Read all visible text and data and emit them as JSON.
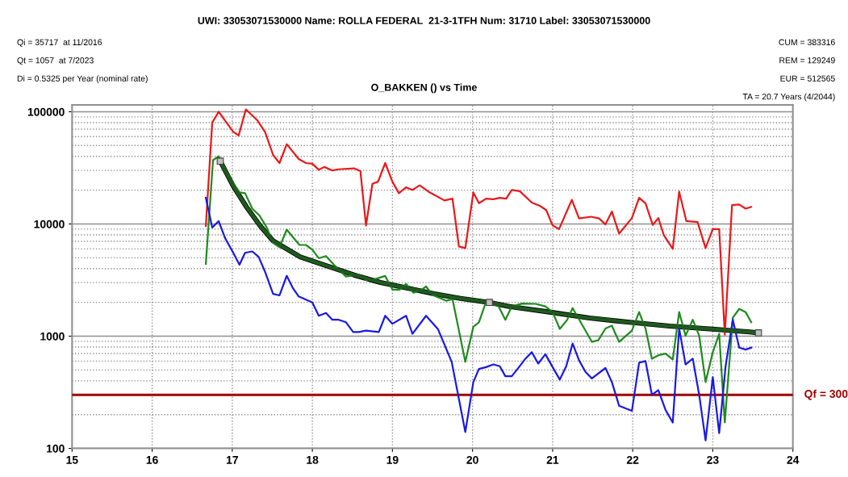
{
  "chart_data": {
    "type": "line",
    "title": "UWI: 33053071530000 Name: ROLLA FEDERAL  21-3-1TFH Num: 31710 Label: 33053071530000",
    "subtitle": "O_BAKKEN () vs Time",
    "annotations": [
      "Qi = 35717  at 11/2016",
      "Qt = 1057  at 7/2023",
      "Di = 0.5325 per Year (nominal rate)",
      "CUM = 383316",
      "REM = 129249",
      "EUR = 512565",
      "TA = 20.7 Years (4/2044)"
    ],
    "log": "y",
    "grid": true,
    "marker": "none",
    "line_style": "solid",
    "xlim": [
      15,
      24
    ],
    "xticks": [
      15,
      16,
      17,
      18,
      19,
      20,
      21,
      22,
      23,
      24
    ],
    "ylim": [
      100,
      115000
    ],
    "yticks": [
      100,
      1000,
      10000,
      100000
    ],
    "ref_lines": [
      {
        "axis": "y",
        "value": 300,
        "label": "Qf = 300",
        "color": "#a00000"
      }
    ],
    "series": [
      {
        "color": "#e8191b",
        "x": [
          16.67,
          16.75,
          16.83,
          17.01,
          17.08,
          17.17,
          17.31,
          17.41,
          17.51,
          17.59,
          17.68,
          17.83,
          17.92,
          18.0,
          18.08,
          18.15,
          18.25,
          18.33,
          18.52,
          18.6,
          18.67,
          18.75,
          18.82,
          18.91,
          19.0,
          19.08,
          19.17,
          19.25,
          19.34,
          19.45,
          19.65,
          19.75,
          19.83,
          19.91,
          20.01,
          20.08,
          20.17,
          20.26,
          20.34,
          20.42,
          20.49,
          20.59,
          20.74,
          20.84,
          20.92,
          21.0,
          21.08,
          21.24,
          21.33,
          21.48,
          21.58,
          21.66,
          21.74,
          21.83,
          21.99,
          22.08,
          22.16,
          22.25,
          22.32,
          22.39,
          22.5,
          22.58,
          22.67,
          22.81,
          22.91,
          23.0,
          23.08,
          23.15,
          23.24,
          23.33,
          23.41,
          23.48
        ],
        "values": [
          9600,
          80000,
          100000,
          66500,
          61600,
          105000,
          84400,
          66000,
          41200,
          34900,
          51400,
          37900,
          34900,
          34400,
          30400,
          32200,
          30000,
          30700,
          31300,
          29600,
          9700,
          22800,
          23800,
          34900,
          23800,
          18800,
          21200,
          20100,
          22100,
          19400,
          16200,
          16800,
          6300,
          6100,
          19100,
          15300,
          16800,
          16600,
          17100,
          16800,
          20100,
          19600,
          15500,
          14500,
          13300,
          9700,
          9000,
          16400,
          11200,
          11600,
          11200,
          9900,
          12900,
          8200,
          11300,
          17100,
          15300,
          9800,
          11300,
          7900,
          6000,
          19400,
          10600,
          10400,
          6100,
          9000,
          9000,
          1030,
          14700,
          14900,
          13700,
          14200
        ]
      },
      {
        "color": "#1f8a1f",
        "x": [
          16.67,
          16.76,
          16.83,
          16.91,
          17.01,
          17.09,
          17.16,
          17.25,
          17.34,
          17.43,
          17.51,
          17.59,
          17.68,
          17.78,
          17.84,
          17.92,
          18.0,
          18.08,
          18.17,
          18.27,
          18.35,
          18.42,
          18.58,
          18.67,
          18.75,
          18.91,
          19.0,
          19.09,
          19.17,
          19.26,
          19.34,
          19.42,
          19.5,
          19.67,
          19.75,
          19.91,
          20.01,
          20.08,
          20.16,
          20.22,
          20.32,
          20.41,
          20.49,
          20.62,
          20.79,
          20.91,
          21.0,
          21.09,
          21.18,
          21.25,
          21.49,
          21.57,
          21.66,
          21.74,
          21.83,
          21.99,
          22.08,
          22.16,
          22.24,
          22.33,
          22.41,
          22.5,
          22.58,
          22.66,
          22.75,
          22.83,
          22.91,
          23.0,
          23.08,
          23.15,
          23.25,
          23.33,
          23.41,
          23.48
        ],
        "values": [
          4400,
          37000,
          40100,
          31300,
          23100,
          19100,
          18800,
          13700,
          11900,
          9300,
          6800,
          6200,
          8900,
          7300,
          6500,
          6500,
          5900,
          4950,
          5180,
          4330,
          3800,
          3400,
          3540,
          3170,
          3170,
          3440,
          2600,
          2600,
          2920,
          2440,
          2520,
          2770,
          2330,
          2070,
          2140,
          590,
          1210,
          1330,
          1940,
          1940,
          1880,
          1400,
          1840,
          1950,
          1940,
          1840,
          1640,
          1160,
          1390,
          1780,
          890,
          920,
          1170,
          1240,
          890,
          1120,
          1640,
          1170,
          630,
          680,
          700,
          620,
          1640,
          1010,
          1400,
          1010,
          390,
          720,
          1050,
          170,
          1460,
          1750,
          1640,
          1330
        ]
      },
      {
        "color": "#1a1ae0",
        "x": [
          16.67,
          16.75,
          16.83,
          16.91,
          17.01,
          17.09,
          17.16,
          17.25,
          17.33,
          17.41,
          17.51,
          17.59,
          17.68,
          17.76,
          17.83,
          18.0,
          18.08,
          18.17,
          18.25,
          18.33,
          18.42,
          18.51,
          18.58,
          18.67,
          18.83,
          18.91,
          19.0,
          19.17,
          19.25,
          19.42,
          19.57,
          19.74,
          19.91,
          20.01,
          20.08,
          20.17,
          20.26,
          20.34,
          20.41,
          20.49,
          20.58,
          20.66,
          20.74,
          20.82,
          20.91,
          21.0,
          21.09,
          21.17,
          21.25,
          21.33,
          21.41,
          21.49,
          21.66,
          21.74,
          21.83,
          21.99,
          22.08,
          22.16,
          22.24,
          22.32,
          22.41,
          22.5,
          22.58,
          22.66,
          22.75,
          22.83,
          22.91,
          23.0,
          23.08,
          23.16,
          23.25,
          23.33,
          23.41,
          23.48
        ],
        "values": [
          17100,
          9300,
          10600,
          7500,
          5570,
          4330,
          5530,
          5690,
          5080,
          3740,
          2380,
          2310,
          3450,
          2660,
          2260,
          2000,
          1520,
          1610,
          1400,
          1400,
          1330,
          1090,
          1090,
          1120,
          1090,
          1520,
          1290,
          1520,
          1050,
          1520,
          1150,
          590,
          140,
          390,
          510,
          530,
          560,
          540,
          440,
          440,
          530,
          630,
          720,
          570,
          690,
          530,
          410,
          540,
          860,
          610,
          480,
          420,
          520,
          390,
          240,
          216,
          580,
          600,
          300,
          330,
          220,
          170,
          1170,
          560,
          630,
          300,
          118,
          430,
          137,
          540,
          1400,
          790,
          760,
          790
        ]
      },
      {
        "color": "#1e5a1e",
        "x": [
          16.85,
          17.01,
          17.18,
          17.35,
          17.51,
          17.85,
          18.18,
          18.52,
          18.85,
          19.19,
          19.52,
          19.85,
          20.21,
          20.46,
          20.96,
          21.46,
          21.96,
          22.46,
          22.96,
          23.46,
          23.57
        ],
        "values": [
          36300,
          21900,
          14100,
          9600,
          7070,
          5080,
          4230,
          3510,
          3010,
          2680,
          2390,
          2170,
          2000,
          1840,
          1640,
          1450,
          1330,
          1230,
          1160,
          1090,
          1070
        ]
      },
      {
        "type": "scatter",
        "marker": "square",
        "color": "#c0c0c0",
        "x": [
          16.85,
          20.21,
          23.57
        ],
        "values": [
          36300,
          2000,
          1070
        ]
      }
    ]
  }
}
